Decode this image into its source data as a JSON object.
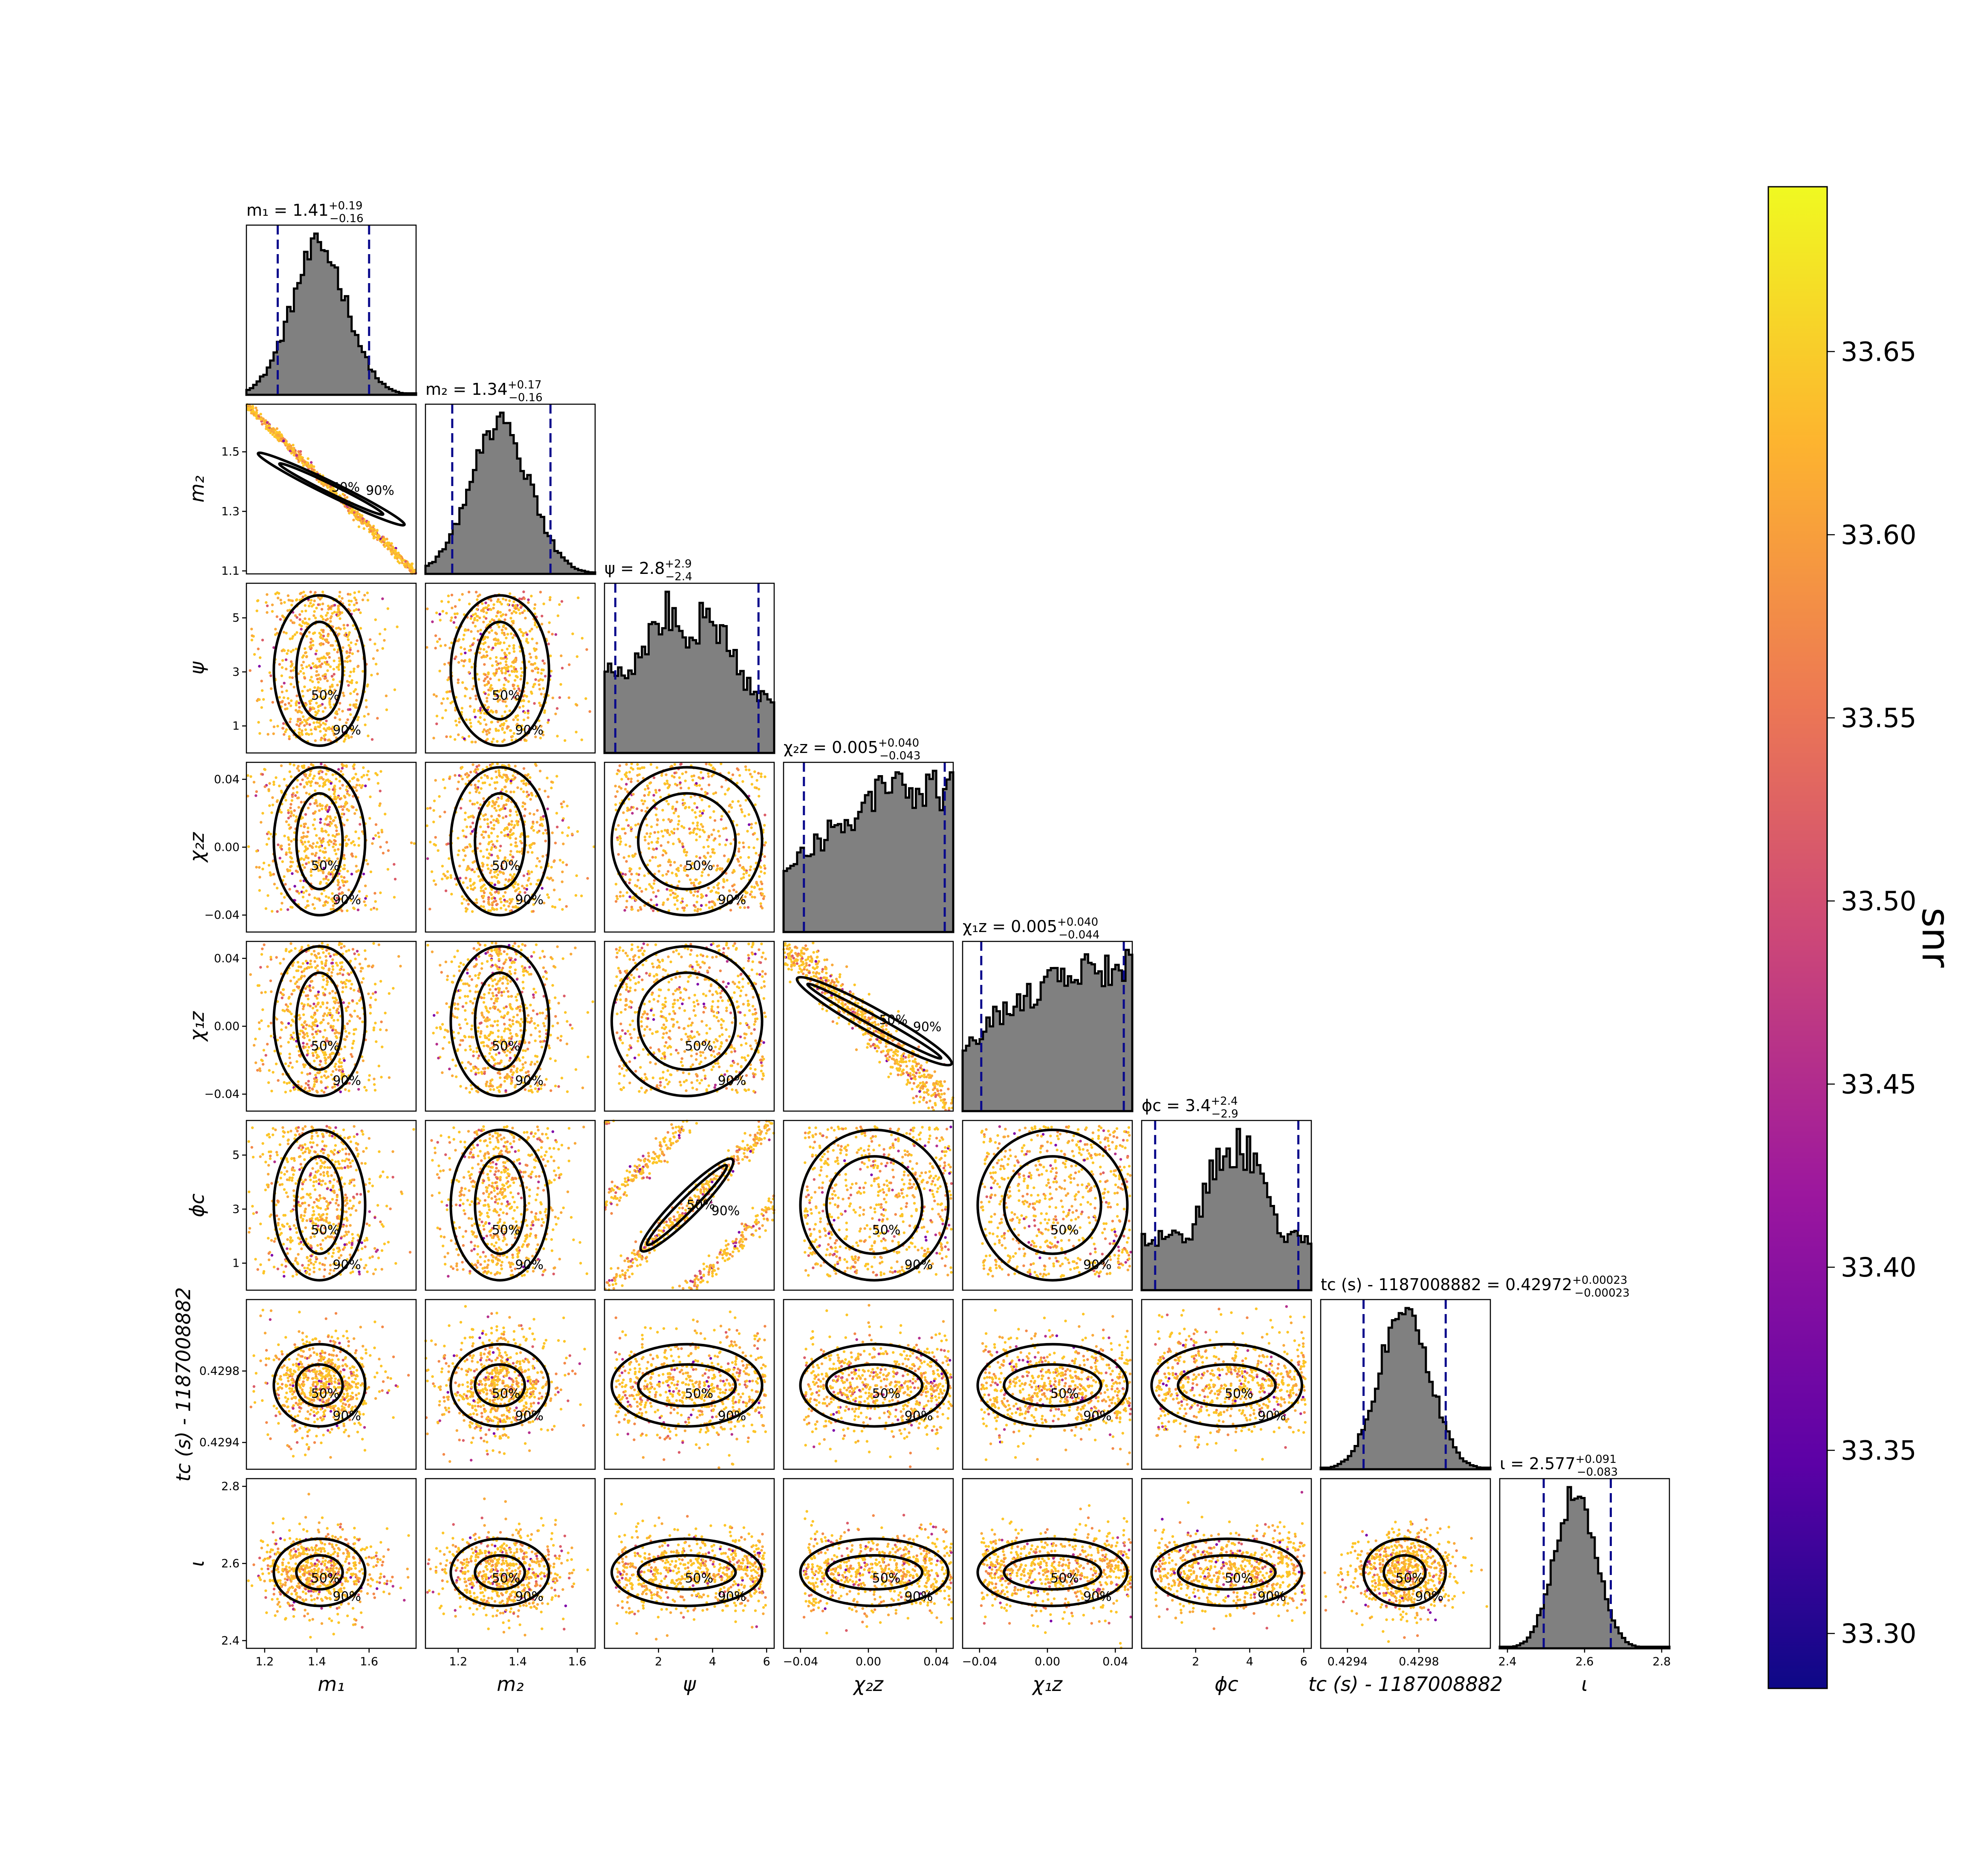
{
  "chart_data": {
    "type": "corner",
    "parameters": [
      {
        "key": "m1",
        "label": "m₁",
        "range": [
          1.13,
          1.78
        ],
        "ticks": [
          1.2,
          1.4,
          1.6
        ],
        "tick_labels": [
          "1.2",
          "1.4",
          "1.6"
        ],
        "median": 1.41,
        "lo": 1.25,
        "hi": 1.6,
        "title": "m₁ = 1.41 +0.19 −0.16",
        "title_main": "m₁ = 1.41",
        "title_sup": "+0.19",
        "title_sub": "−0.16"
      },
      {
        "key": "m2",
        "label": "m₂",
        "range": [
          1.09,
          1.66
        ],
        "ticks": [
          1.2,
          1.4,
          1.6
        ],
        "tick_labels": [
          "1.2",
          "1.4",
          "1.6"
        ],
        "yticks": [
          1.1,
          1.3,
          1.5
        ],
        "ytick_labels": [
          "1.1",
          "1.3",
          "1.5"
        ],
        "median": 1.34,
        "lo": 1.18,
        "hi": 1.51,
        "title": "m₂ = 1.34 +0.17 −0.16",
        "title_main": "m₂ = 1.34",
        "title_sup": "+0.17",
        "title_sub": "−0.16"
      },
      {
        "key": "psi",
        "label": "ψ",
        "range": [
          0.0,
          6.28
        ],
        "ticks": [
          2,
          4,
          6
        ],
        "tick_labels": [
          "2",
          "4",
          "6"
        ],
        "yticks": [
          1,
          3,
          5
        ],
        "ytick_labels": [
          "1",
          "3",
          "5"
        ],
        "median": 2.8,
        "lo": 0.4,
        "hi": 5.7,
        "title": "ψ = 2.8 +2.9 −2.4",
        "title_main": "ψ = 2.8",
        "title_sup": "+2.9",
        "title_sub": "−2.4"
      },
      {
        "key": "chi2z",
        "label": "χ₂z",
        "range": [
          -0.05,
          0.05
        ],
        "ticks": [
          -0.04,
          0.0,
          0.04
        ],
        "tick_labels": [
          "−0.04",
          "0.00",
          "0.04"
        ],
        "median": 0.005,
        "lo": -0.038,
        "hi": 0.045,
        "title": "χ₂z = 0.005 +0.040 −0.043",
        "title_main": "χ₂z = 0.005",
        "title_sup": "+0.040",
        "title_sub": "−0.043"
      },
      {
        "key": "chi1z",
        "label": "χ₁z",
        "range": [
          -0.05,
          0.05
        ],
        "ticks": [
          -0.04,
          0.0,
          0.04
        ],
        "tick_labels": [
          "−0.04",
          "0.00",
          "0.04"
        ],
        "median": 0.005,
        "lo": -0.039,
        "hi": 0.045,
        "title": "χ₁z = 0.005 +0.040 −0.044",
        "title_main": "χ₁z = 0.005",
        "title_sup": "+0.040",
        "title_sub": "−0.044"
      },
      {
        "key": "phic",
        "label": "ϕc",
        "range": [
          0.0,
          6.28
        ],
        "ticks": [
          2,
          4,
          6
        ],
        "tick_labels": [
          "2",
          "4",
          "6"
        ],
        "yticks": [
          1,
          3,
          5
        ],
        "ytick_labels": [
          "1",
          "3",
          "5"
        ],
        "median": 3.4,
        "lo": 0.5,
        "hi": 5.8,
        "title": "ϕc = 3.4 +2.4 −2.9",
        "title_main": "ϕc = 3.4",
        "title_sup": "+2.4",
        "title_sub": "−2.9"
      },
      {
        "key": "tc",
        "label": "tc (s) - 1187008882",
        "range": [
          0.42925,
          0.4302
        ],
        "ticks": [
          0.4294,
          0.4298
        ],
        "tick_labels": [
          "0.4294",
          "0.4298"
        ],
        "median": 0.42972,
        "lo": 0.42949,
        "hi": 0.42995,
        "title": "tc (s) - 1187008882 = 0.42972 +0.00023 −0.00023",
        "title_main": "tc (s) - 1187008882 = 0.42972",
        "title_sup": "+0.00023",
        "title_sub": "−0.00023"
      },
      {
        "key": "iota",
        "label": "ι",
        "range": [
          2.38,
          2.82
        ],
        "ticks": [
          2.4,
          2.6,
          2.8
        ],
        "tick_labels": [
          "2.4",
          "2.6",
          "2.8"
        ],
        "median": 2.577,
        "lo": 2.494,
        "hi": 2.668,
        "title": "ι = 2.577 +0.091 −0.083",
        "title_main": "ι = 2.577",
        "title_sup": "+0.091",
        "title_sub": "−0.083"
      }
    ],
    "contour_levels": [
      "50%",
      "90%"
    ],
    "colorbar": {
      "label": "snr",
      "range": [
        33.285,
        33.695
      ],
      "ticks": [
        33.3,
        33.35,
        33.4,
        33.45,
        33.5,
        33.55,
        33.6,
        33.65
      ],
      "tick_labels": [
        "33.30",
        "33.35",
        "33.40",
        "33.45",
        "33.50",
        "33.55",
        "33.60",
        "33.65"
      ],
      "colormap": [
        "#0d0887",
        "#5c01a6",
        "#9c179e",
        "#cc4778",
        "#ed7953",
        "#fdb42f",
        "#f0f921"
      ]
    },
    "colors": {
      "histogram_fill": "#808080",
      "quantile_line": "#0a0a8c",
      "contour": "#000000"
    }
  }
}
